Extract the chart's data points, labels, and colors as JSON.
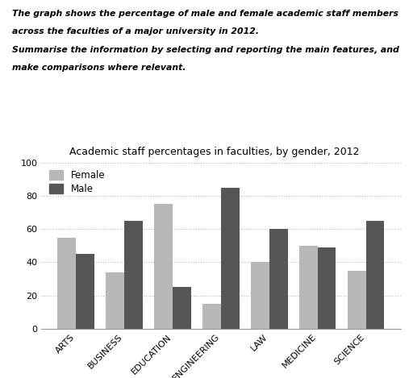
{
  "title": "Academic staff percentages in faculties, by gender, 2012",
  "header_line1": "The graph shows the percentage of male and female academic staff members",
  "header_line2": "across the faculties of a major university in 2012.",
  "header_line3": "Summarise the information by selecting and reporting the main features, and",
  "header_line4": "make comparisons where relevant.",
  "categories": [
    "ARTS",
    "BUSINESS",
    "EDUCATION",
    "ENGINEERING",
    "LAW",
    "MEDICINE",
    "SCIENCE"
  ],
  "female_values": [
    55,
    34,
    75,
    15,
    40,
    50,
    35
  ],
  "male_values": [
    45,
    65,
    25,
    85,
    60,
    49,
    65
  ],
  "female_color": "#b8b8b8",
  "male_color": "#565656",
  "ylim": [
    0,
    100
  ],
  "yticks": [
    0,
    20,
    40,
    60,
    80,
    100
  ],
  "bar_width": 0.38,
  "background_color": "#ffffff",
  "grid_color": "#bbbbbb",
  "legend_labels": [
    "Female",
    "Male"
  ]
}
